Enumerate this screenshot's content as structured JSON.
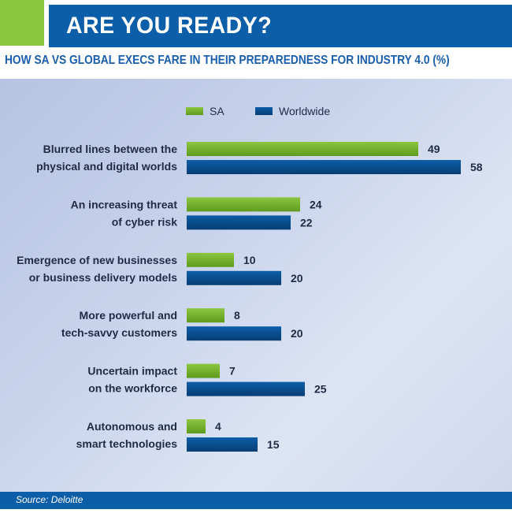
{
  "header": {
    "title": "ARE YOU READY?",
    "subtitle": "HOW SA VS GLOBAL EXECS FARE IN THEIR PREPAREDNESS FOR INDUSTRY 4.0 (%)"
  },
  "source": "Source: Deloitte",
  "colors": {
    "sa": "#8cc63f",
    "worldwide": "#0d5ea8",
    "brand_blue": "#0d5ea8",
    "accent_green": "#8cc63f"
  },
  "chart_data": {
    "type": "bar",
    "orientation": "horizontal",
    "categories": [
      [
        "Blurred lines between the",
        "physical and digital worlds"
      ],
      [
        "An increasing threat",
        "of cyber risk"
      ],
      [
        "Emergence of new businesses",
        "or business delivery models"
      ],
      [
        "More powerful and",
        "tech-savvy customers"
      ],
      [
        "Uncertain impact",
        "on the workforce"
      ],
      [
        "Autonomous and",
        "smart technologies"
      ]
    ],
    "series": [
      {
        "name": "SA",
        "values": [
          49,
          24,
          10,
          8,
          7,
          4
        ]
      },
      {
        "name": "Worldwide",
        "values": [
          58,
          22,
          20,
          20,
          25,
          15
        ]
      }
    ],
    "legend_position": "top",
    "grid": false
  }
}
